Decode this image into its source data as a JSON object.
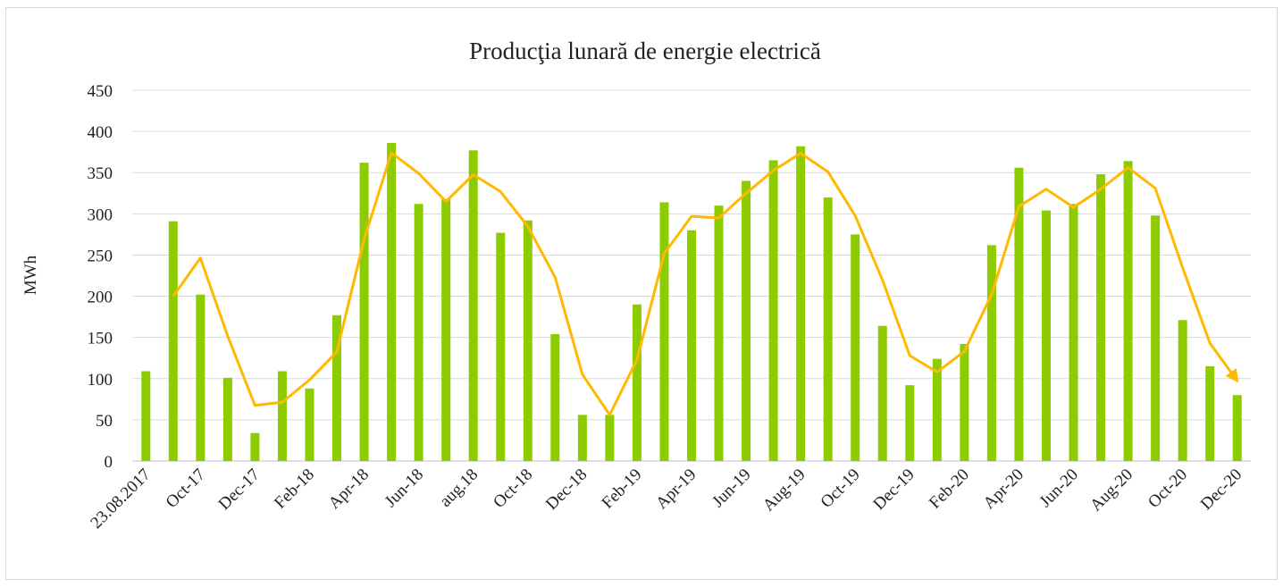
{
  "chart_data": {
    "type": "bar_line",
    "title": "Producţia lunară de energie electrică",
    "y_label": "MWh",
    "categories": [
      "23.08.2017",
      null,
      "Oct-17",
      null,
      "Dec-17",
      null,
      "Feb-18",
      null,
      "Apr-18",
      null,
      "Jun-18",
      null,
      "aug.18",
      null,
      "Oct-18",
      null,
      "Dec-18",
      null,
      "Feb-19",
      null,
      "Apr-19",
      null,
      "Jun-19",
      null,
      "Aug-19",
      null,
      "Oct-19",
      null,
      "Dec-19",
      null,
      "Feb-20",
      null,
      "Apr-20",
      null,
      "Jun-20",
      null,
      "Aug-20",
      null,
      "Oct-20",
      null,
      "Dec-20"
    ],
    "series": [
      {
        "type": "bar",
        "color": "#8ccc00",
        "values": [
          109,
          291,
          202,
          101,
          34,
          109,
          88,
          177,
          362,
          386,
          312,
          318,
          377,
          277,
          292,
          154,
          56,
          56,
          190,
          314,
          280,
          310,
          340,
          365,
          382,
          320,
          275,
          164,
          92,
          124,
          142,
          262,
          356,
          304,
          312,
          348,
          364,
          298,
          171,
          115,
          80
        ]
      },
      {
        "type": "line",
        "color": "#ffb900",
        "values": [
          null,
          200,
          246.5,
          151.5,
          67.5,
          71.5,
          98.5,
          132.5,
          269.5,
          374,
          349,
          315,
          347.5,
          327,
          284.5,
          223,
          105,
          56,
          123,
          252,
          297,
          295,
          325,
          352.5,
          373.5,
          351,
          297.5,
          219.5,
          128,
          108,
          133,
          202,
          309,
          330,
          308,
          330,
          356,
          331,
          234.5,
          143,
          97.5
        ]
      }
    ],
    "ylim": [
      0,
      450
    ],
    "yticks": [
      0,
      50,
      100,
      150,
      200,
      250,
      300,
      350,
      400,
      450
    ],
    "grid": true
  }
}
